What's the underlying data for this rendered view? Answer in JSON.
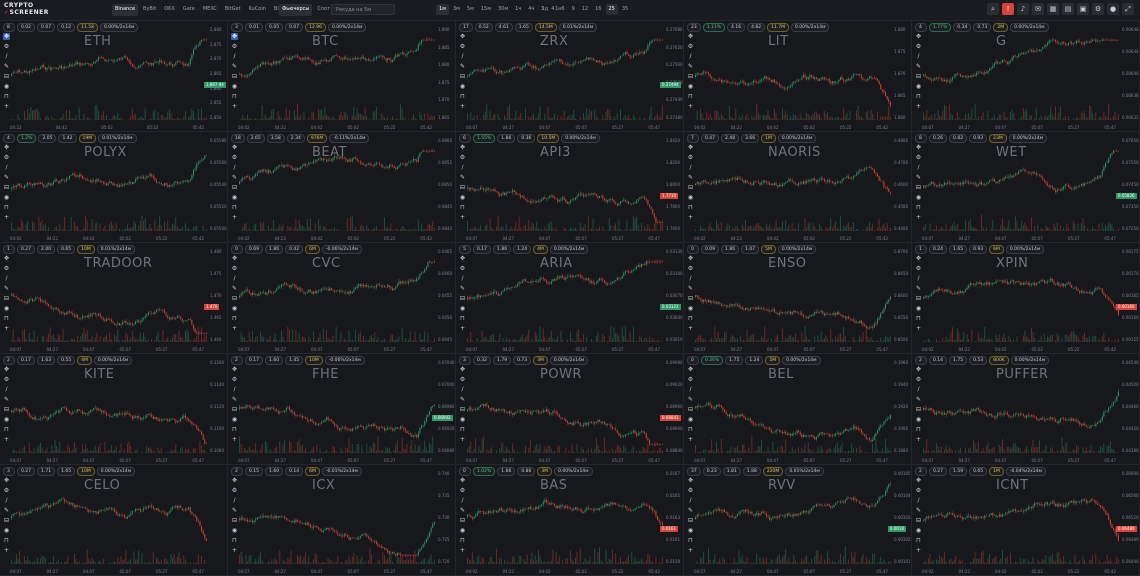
{
  "header": {
    "logo_line1": "CRYPTO",
    "logo_line2": "SCREENER",
    "exchanges": [
      "Binance",
      "ByBit",
      "OKX",
      "Gate",
      "MEXC",
      "BitGet",
      "KuCoin",
      "BingX",
      "HTX"
    ],
    "active_exchange": "Binance",
    "market_tabs": [
      "Фьючерсы",
      "Спот"
    ],
    "active_market": "Фьючерсы",
    "search_placeholder": "Рекуда на 5м",
    "timeframes": [
      "1м",
      "3м",
      "5м",
      "15м",
      "30м",
      "1ч",
      "4ч",
      "1д",
      "1н"
    ],
    "active_timeframe": "1м",
    "grid_counts": [
      "3",
      "4",
      "6",
      "9",
      "12",
      "16",
      "25",
      "35"
    ],
    "active_count": "25",
    "icons": [
      "search-icon",
      "alert-icon",
      "sound-icon",
      "chat-icon",
      "calendar-icon",
      "book-icon",
      "layout-icon",
      "settings-icon",
      "user-icon",
      "fullscreen-icon"
    ]
  },
  "colors": {
    "up": "#2e9a6a",
    "down": "#d8443a",
    "bg": "#17181c"
  },
  "panels": [
    {
      "symbol": "ETH",
      "num": "8",
      "pills": [
        "0.02",
        "0.07",
        "0.12",
        "11.58",
        "0.00%/2x14м"
      ],
      "price": "2,867.94",
      "dir": "up",
      "ticks": [
        "04:22",
        "04:42",
        "05:02",
        "05:22",
        "05:42"
      ],
      "y": [
        "2,880",
        "2,875",
        "2,870",
        "2,865",
        "2,860",
        "2,855",
        "2,850"
      ]
    },
    {
      "symbol": "BTC",
      "num": "3",
      "pills": [
        "0.01",
        "0.05",
        "0.07",
        "12.96",
        "0.00%/2x14м"
      ],
      "price": "",
      "dir": "up",
      "ticks": [
        "04:02",
        "04:22",
        "04:42",
        "05:02",
        "05:22",
        "05:42"
      ],
      "y": [
        "1,890",
        "1,885",
        "1,880",
        "1,875",
        "1,870",
        "1,865"
      ]
    },
    {
      "symbol": "ZRX",
      "num": "17",
      "pills": [
        "0.52",
        "4.61",
        "1.65",
        "14.5M",
        "0.01%/2x14м"
      ],
      "price": "0.27494",
      "dir": "up",
      "ticks": [
        "04:07",
        "04:27",
        "04:47",
        "05:07",
        "05:27",
        "05:47"
      ],
      "y": [
        "0.27680",
        "0.27620",
        "0.27560",
        "0.27500",
        "0.27440",
        "0.27380"
      ]
    },
    {
      "symbol": "LIT",
      "num": "23",
      "pills": [
        "1.11%",
        "4.16",
        "4.82",
        "11.7M",
        "0.00%/2x14м"
      ],
      "price": "",
      "dir": "down",
      "ticks": [
        "04:02",
        "04:22",
        "04:42",
        "05:02",
        "05:22",
        "05:42"
      ],
      "y": [
        "1.880",
        "1.875",
        "1.870",
        "1.865",
        "1.860"
      ]
    },
    {
      "symbol": "G",
      "num": "4",
      "pills": [
        "1.77%",
        "0.34",
        "0.73",
        "2M",
        "0.00%/2x14м"
      ],
      "price": "",
      "dir": "up",
      "ticks": [
        "04:07",
        "04:27",
        "04:47",
        "05:07",
        "05:27",
        "05:47"
      ],
      "y": [
        "0.00648",
        "0.00644",
        "0.00640",
        "0.00636",
        "0.00632"
      ]
    },
    {
      "symbol": "POLYX",
      "num": "4",
      "pills": [
        "1.2%",
        "2.05",
        "1.42",
        "19M",
        "0.01%/2x14м"
      ],
      "price": "",
      "dir": "up",
      "ticks": [
        "04:02",
        "04:22",
        "04:42",
        "05:02",
        "05:22",
        "05:42"
      ],
      "y": [
        "0.05580",
        "0.05560",
        "0.05540",
        "0.05520",
        "0.05500"
      ]
    },
    {
      "symbol": "BEAT",
      "num": "18",
      "pills": [
        "2.65",
        "3.58",
        "2.34",
        "976M",
        "-0.11%/2x14м"
      ],
      "price": "",
      "dir": "up",
      "ticks": [
        "04:02",
        "04:22",
        "04:42",
        "05:02",
        "05:22",
        "05:42"
      ],
      "y": [
        "0.0860",
        "0.0855",
        "0.0850",
        "0.0845",
        "0.0840"
      ]
    },
    {
      "symbol": "API3",
      "num": "6",
      "pills": [
        "1.55%",
        "1.86",
        "0.36",
        "10.5M",
        "0.00%/2x14м"
      ],
      "price": "1.7710",
      "dir": "down",
      "ticks": [
        "04:07",
        "04:27",
        "04:47",
        "05:07",
        "05:27",
        "05:47"
      ],
      "y": [
        "1.8420",
        "1.8200",
        "1.8000",
        "1.7800",
        "1.7600"
      ]
    },
    {
      "symbol": "NAORIS",
      "num": "7",
      "pills": [
        "0.47",
        "2.48",
        "3.66",
        "1M",
        "0.00%/2x14м"
      ],
      "price": "",
      "dir": "down",
      "ticks": [
        "04:02",
        "04:22",
        "04:42",
        "05:02",
        "05:22",
        "05:42"
      ],
      "y": [
        "0.4800",
        "0.4700",
        "0.4600",
        "0.4500",
        "0.4400"
      ]
    },
    {
      "symbol": "WET",
      "num": "8",
      "pills": [
        "0.26",
        "0.82",
        "0.93",
        "23M",
        "0.00%/2x14м"
      ],
      "price": "0.05826",
      "dir": "up",
      "ticks": [
        "04:07",
        "04:27",
        "04:47",
        "05:07",
        "05:27",
        "05:47"
      ],
      "y": [
        "0.07650",
        "0.07550",
        "0.07450",
        "0.07350",
        "0.07250"
      ]
    },
    {
      "symbol": "TRADOOR",
      "num": "1",
      "pills": [
        "0.27",
        "2.00",
        "0.65",
        "10M",
        "0.01%/2x14м"
      ],
      "price": "1.470",
      "dir": "down",
      "ticks": [
        "04:07",
        "04:27",
        "04:47",
        "05:07",
        "05:27",
        "05:47"
      ],
      "y": [
        "1.480",
        "1.475",
        "1.470",
        "1.465",
        "1.460"
      ]
    },
    {
      "symbol": "CVC",
      "num": "0",
      "pills": [
        "0.69",
        "1.86",
        "0.42",
        "6M",
        "-0.06%/2x14м"
      ],
      "price": "",
      "dir": "up",
      "ticks": [
        "04:07",
        "04:27",
        "04:47",
        "05:07",
        "05:27",
        "05:47"
      ],
      "y": [
        "0.0465",
        "0.0460",
        "0.0455",
        "0.0450",
        "0.0445"
      ]
    },
    {
      "symbol": "ARIA",
      "num": "5",
      "pills": [
        "0.17",
        "1.86",
        "1.24",
        "4M",
        "0.00%/2x14м"
      ],
      "price": "0.03121",
      "dir": "up",
      "ticks": [
        "04:07",
        "04:27",
        "04:47",
        "05:07",
        "05:27",
        "05:47"
      ],
      "y": [
        "0.03130",
        "0.03100",
        "0.03070",
        "0.03040",
        "0.03010"
      ]
    },
    {
      "symbol": "ENSO",
      "num": "0",
      "pills": [
        "0.09",
        "1.86",
        "1.07",
        "5M",
        "0.00%/2x14м"
      ],
      "price": "",
      "dir": "up",
      "ticks": [
        "04:07",
        "04:27",
        "04:47",
        "05:07",
        "05:27",
        "05:47"
      ],
      "y": [
        "0.8700",
        "0.8650",
        "0.8600",
        "0.8550",
        "0.8500"
      ]
    },
    {
      "symbol": "XPIN",
      "num": "1",
      "pills": [
        "0.24",
        "1.65",
        "0.93",
        "6M",
        "0.00%/2x14м"
      ],
      "price": "0.00160",
      "dir": "down",
      "ticks": [
        "04:02",
        "04:22",
        "04:42",
        "05:02",
        "05:22",
        "05:42"
      ],
      "y": [
        "0.00175",
        "0.00170",
        "0.00165",
        "0.00160",
        "0.00155"
      ]
    },
    {
      "symbol": "KITE",
      "num": "2",
      "pills": [
        "0.17",
        "1.63",
        "0.55",
        "4M",
        "0.00%/2x14м"
      ],
      "price": "",
      "dir": "down",
      "ticks": [
        "04:07",
        "04:27",
        "04:47",
        "05:07",
        "05:27",
        "05:47"
      ],
      "y": [
        "0.1160",
        "0.1140",
        "0.1120",
        "0.1100",
        "0.1080"
      ]
    },
    {
      "symbol": "FHE",
      "num": "2",
      "pills": [
        "0.17",
        "1.60",
        "1.45",
        "10M",
        "-0.06%/2x14м"
      ],
      "price": "0.06902",
      "dir": "up",
      "ticks": [
        "04:07",
        "04:27",
        "04:47",
        "05:07",
        "05:27",
        "05:47"
      ],
      "y": [
        "0.07040",
        "0.07000",
        "0.06960",
        "0.06920",
        "0.06880"
      ]
    },
    {
      "symbol": "POWR",
      "num": "3",
      "pills": [
        "0.32",
        "1.79",
        "0.73",
        "3M",
        "0.00%/2x14м"
      ],
      "price": "0.08841",
      "dir": "down",
      "ticks": [
        "04:07",
        "04:27",
        "04:47",
        "05:07",
        "05:27",
        "05:47"
      ],
      "y": [
        "0.09080",
        "0.09020",
        "0.08960",
        "0.08900",
        "0.08840"
      ]
    },
    {
      "symbol": "BEL",
      "num": "0",
      "pills": [
        "0.26%",
        "1.75",
        "1.24",
        "5M",
        "0.00%/2x14м"
      ],
      "price": "",
      "dir": "up",
      "ticks": [
        "04:07",
        "04:27",
        "04:47",
        "05:07",
        "05:27",
        "05:47"
      ],
      "y": [
        "0.1960",
        "0.1940",
        "0.1920",
        "0.1900",
        "0.1880"
      ]
    },
    {
      "symbol": "PUFFER",
      "num": "2",
      "pills": [
        "0.14",
        "1.75",
        "0.53",
        "800K",
        "0.00%/2x14м"
      ],
      "price": "",
      "dir": "up",
      "ticks": [
        "04:07",
        "04:27",
        "04:47",
        "05:07",
        "05:27",
        "05:47"
      ],
      "y": [
        "0.04540",
        "0.04500",
        "0.04460",
        "0.04420",
        "0.04380"
      ]
    },
    {
      "symbol": "CELO",
      "num": "3",
      "pills": [
        "0.27",
        "1.71",
        "1.65",
        "10M",
        "0.00%/2x14м"
      ],
      "price": "",
      "dir": "down",
      "ticks": [
        "04:07",
        "04:27",
        "04:47",
        "05:07",
        "05:27",
        "05:47"
      ],
      "y": []
    },
    {
      "symbol": "ICX",
      "num": "2",
      "pills": [
        "0.15",
        "1.60",
        "0.14",
        "6M",
        "-0.01%/2x14м"
      ],
      "price": "",
      "dir": "up",
      "ticks": [
        "04:07",
        "04:27",
        "04:47",
        "05:07",
        "05:27",
        "05:47"
      ],
      "y": [
        "0.740",
        "0.735",
        "0.730",
        "0.725",
        "0.720"
      ]
    },
    {
      "symbol": "BAS",
      "num": "0",
      "pills": [
        "1.02%",
        "1.66",
        "0.86",
        "3M",
        "0.00%/2x14м"
      ],
      "price": "0.0161",
      "dir": "down",
      "ticks": [
        "04:02",
        "04:22",
        "04:42",
        "05:02",
        "05:22",
        "05:42"
      ],
      "y": [
        "0.0167",
        "0.0165",
        "0.0163",
        "0.0161",
        "0.0159"
      ]
    },
    {
      "symbol": "RVV",
      "num": "37",
      "pills": [
        "0.23",
        "1.81",
        "1.88",
        "220M",
        "0.01%/2x14м"
      ],
      "price": "0.0010",
      "dir": "up",
      "ticks": [
        "04:07",
        "04:27",
        "04:47",
        "05:07",
        "05:27",
        "05:47"
      ],
      "y": [
        "0.00105",
        "0.00104",
        "0.00103",
        "0.00102",
        "0.00101"
      ]
    },
    {
      "symbol": "ICNT",
      "num": "2",
      "pills": [
        "0.27",
        "1.59",
        "0.65",
        "1M",
        "-0.04%/2x14м"
      ],
      "price": "0.06480",
      "dir": "down",
      "ticks": [
        "04:02",
        "04:22",
        "04:42",
        "05:02",
        "05:22",
        "05:42"
      ],
      "y": [
        "0.06600",
        "0.06560",
        "0.06520",
        "0.06480",
        "0.06440"
      ]
    }
  ]
}
